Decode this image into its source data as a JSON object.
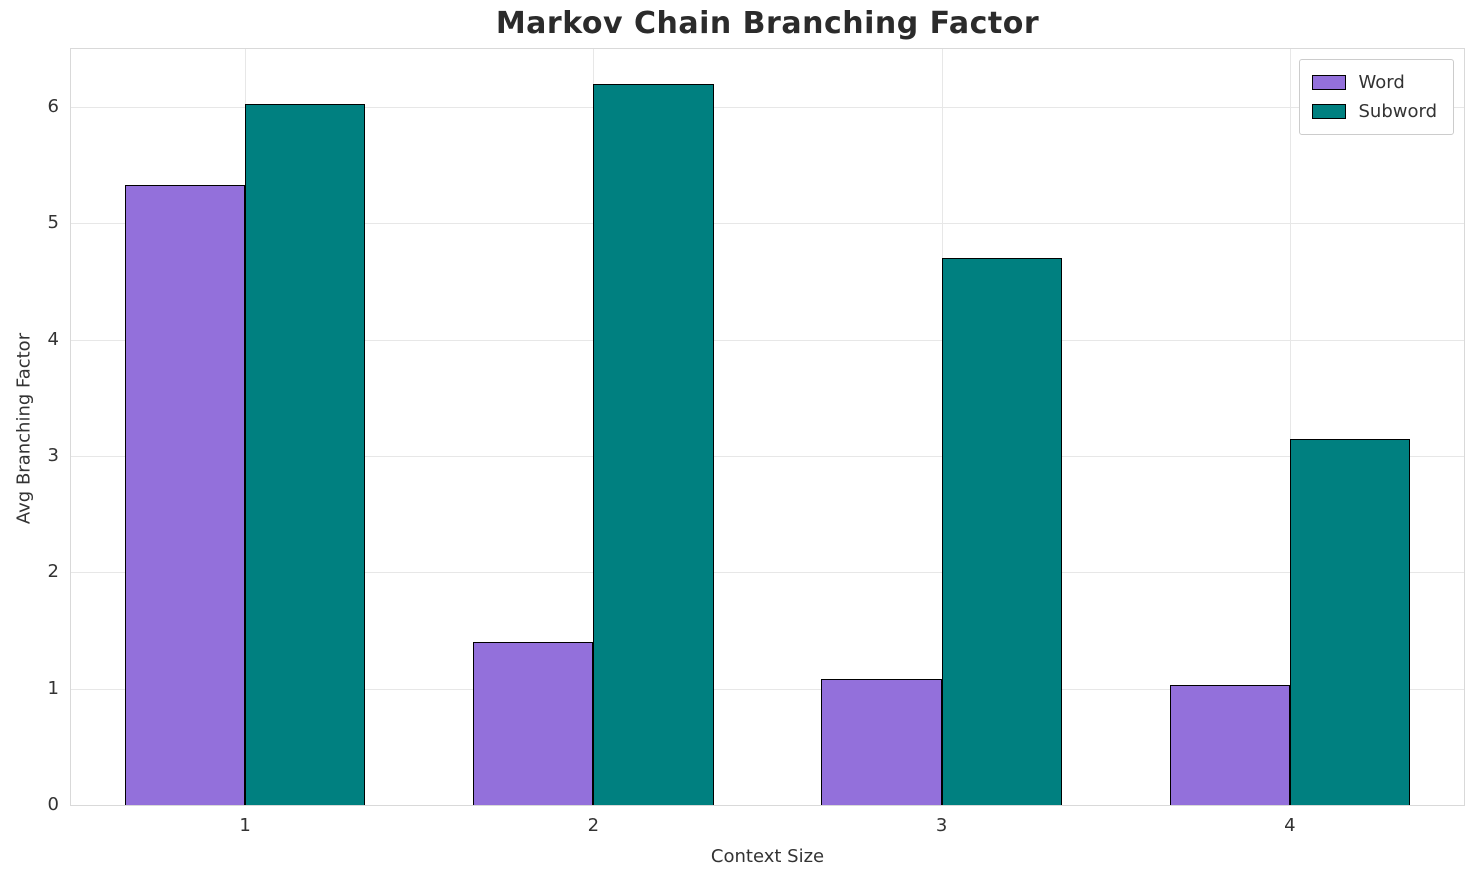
{
  "chart_data": {
    "type": "bar",
    "title": "Markov Chain Branching Factor",
    "xlabel": "Context Size",
    "ylabel": "Avg Branching Factor",
    "categories": [
      "1",
      "2",
      "3",
      "4"
    ],
    "series": [
      {
        "name": "Word",
        "color": "#9370db",
        "values": [
          5.33,
          1.4,
          1.08,
          1.03
        ]
      },
      {
        "name": "Subword",
        "color": "#008080",
        "values": [
          6.03,
          6.2,
          4.7,
          3.15
        ]
      }
    ],
    "ylim": [
      0,
      6.5
    ],
    "yticks": [
      0,
      1,
      2,
      3,
      4,
      5,
      6
    ],
    "grid": true,
    "legend_position": "upper right",
    "bar_edge_color": "#000000",
    "background_color": "#ffffff",
    "grid_color": "#e7e7e7"
  }
}
